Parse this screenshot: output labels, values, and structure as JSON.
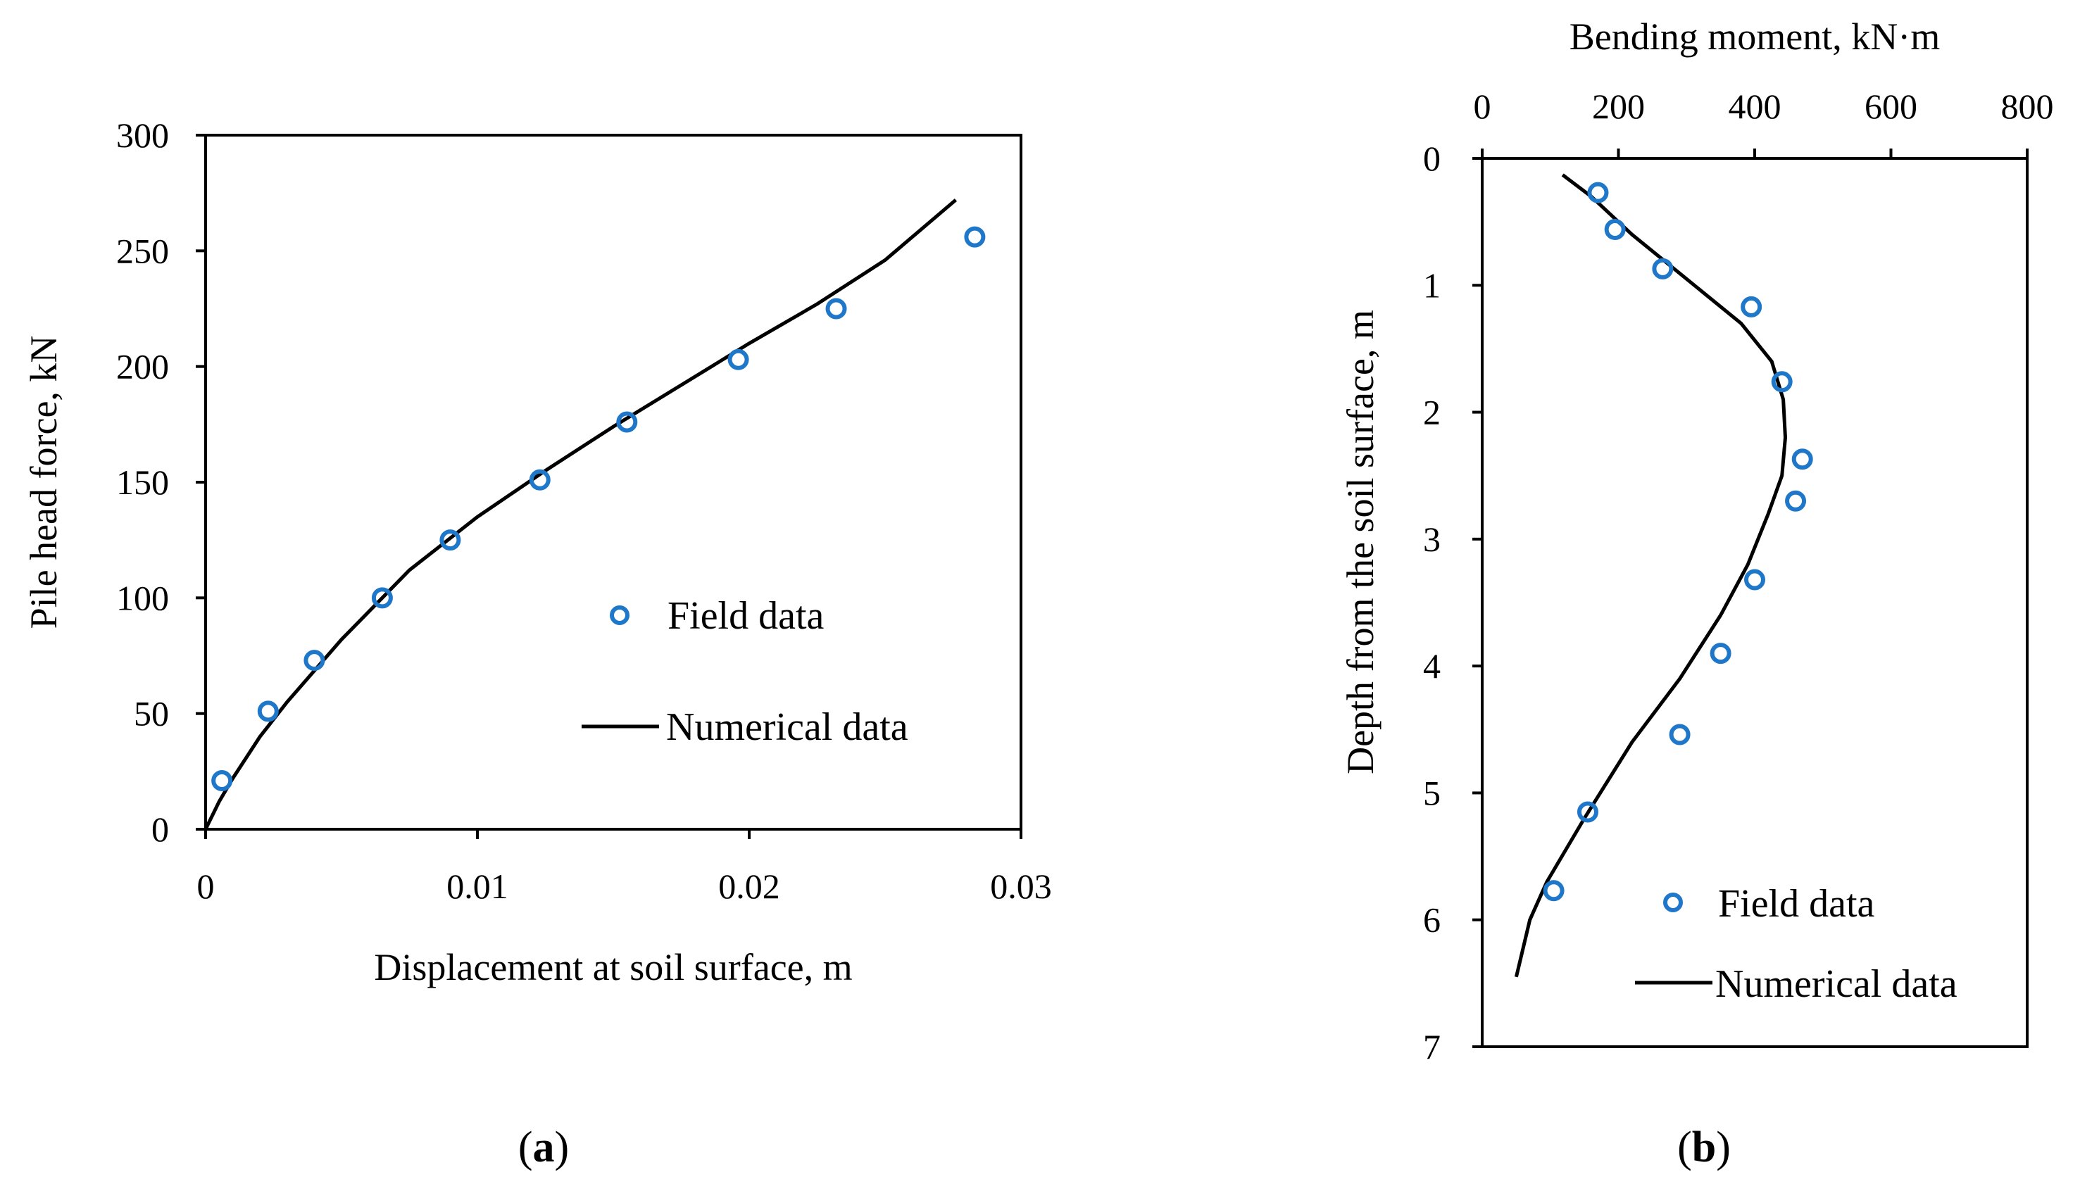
{
  "colors": {
    "marker": "#1f77c9",
    "line": "#000000",
    "axis": "#000000"
  },
  "chart_data": [
    {
      "type": "scatter",
      "panel_label": "a",
      "title": "",
      "xlabel": "Displacement at soil surface, m",
      "ylabel": "Pile head force, kN",
      "xlim": [
        0,
        0.03
      ],
      "ylim": [
        0,
        300
      ],
      "x_ticks": [
        "0",
        "0.01",
        "0.02",
        "0.03"
      ],
      "x_tick_values": [
        0,
        0.01,
        0.02,
        0.03
      ],
      "y_ticks": [
        "0",
        "50",
        "100",
        "150",
        "200",
        "250",
        "300"
      ],
      "y_tick_values": [
        0,
        50,
        100,
        150,
        200,
        250,
        300
      ],
      "legend": {
        "position": "lower-right",
        "entries": [
          "Field data",
          "Numerical data"
        ]
      },
      "series": [
        {
          "name": "Field data",
          "style": "marker",
          "x": [
            0.0006,
            0.0023,
            0.004,
            0.0065,
            0.009,
            0.0123,
            0.0155,
            0.0196,
            0.0232,
            0.0283
          ],
          "y": [
            21,
            51,
            73,
            100,
            125,
            151,
            176,
            203,
            225,
            256
          ]
        },
        {
          "name": "Numerical data",
          "style": "line",
          "x": [
            0,
            0.0005,
            0.001,
            0.002,
            0.003,
            0.005,
            0.0075,
            0.01,
            0.0125,
            0.015,
            0.0175,
            0.02,
            0.0225,
            0.025,
            0.0276
          ],
          "y": [
            0,
            12,
            22,
            40,
            55,
            82,
            112,
            135,
            155,
            174,
            192,
            210,
            227,
            246,
            272
          ]
        }
      ]
    },
    {
      "type": "scatter",
      "panel_label": "b",
      "title": "",
      "xlabel": "Bending moment, kN·m",
      "ylabel": "Depth from the soil surface, m",
      "x_axis_position": "top",
      "y_axis_inverted": true,
      "xlim": [
        0,
        800
      ],
      "ylim": [
        0,
        7
      ],
      "x_ticks": [
        "0",
        "200",
        "400",
        "600",
        "800"
      ],
      "x_tick_values": [
        0,
        200,
        400,
        600,
        800
      ],
      "y_ticks": [
        "0",
        "1",
        "2",
        "3",
        "4",
        "5",
        "6",
        "7"
      ],
      "y_tick_values": [
        0,
        1,
        2,
        3,
        4,
        5,
        6,
        7
      ],
      "legend": {
        "position": "lower-right",
        "entries": [
          "Field data",
          "Numerical data"
        ]
      },
      "series": [
        {
          "name": "Field data",
          "style": "marker",
          "x": [
            170,
            195,
            265,
            395,
            440,
            470,
            460,
            400,
            350,
            290,
            155,
            105
          ],
          "y": [
            0.27,
            0.56,
            0.87,
            1.17,
            1.76,
            2.37,
            2.7,
            3.32,
            3.9,
            4.54,
            5.15,
            5.77
          ]
        },
        {
          "name": "Numerical data",
          "style": "line",
          "x": [
            118,
            160,
            220,
            300,
            380,
            425,
            442,
            445,
            440,
            420,
            390,
            350,
            290,
            220,
            150,
            95,
            70,
            50
          ],
          "y": [
            0.13,
            0.3,
            0.6,
            0.95,
            1.3,
            1.6,
            1.9,
            2.2,
            2.5,
            2.8,
            3.2,
            3.6,
            4.1,
            4.6,
            5.2,
            5.7,
            6.0,
            6.45
          ]
        }
      ]
    }
  ]
}
